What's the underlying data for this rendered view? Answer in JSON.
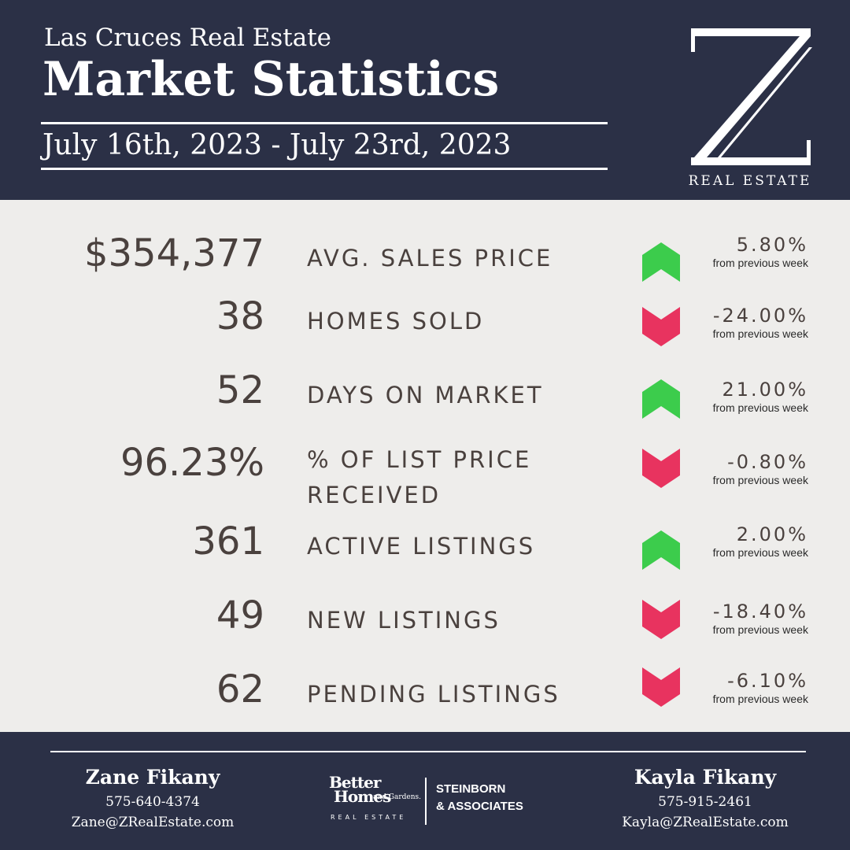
{
  "header": {
    "subtitle": "Las Cruces Real Estate",
    "title": "Market Statistics",
    "date_range": "July 16th, 2023 - July 23rd, 2023",
    "logo_letter": "Z",
    "logo_caption": "REAL ESTATE"
  },
  "colors": {
    "navy": "#2b3046",
    "panel": "#eeedeb",
    "text": "#4a413e",
    "up": "#3ccc4c",
    "down": "#e8335f"
  },
  "stats": [
    {
      "value": "$354,377",
      "label": "AVG. SALES PRICE",
      "label2": "",
      "direction": "up",
      "change": "5.80%",
      "note": "from previous week"
    },
    {
      "value": "38",
      "label": "HOMES SOLD",
      "label2": "",
      "direction": "down",
      "change": "-24.00%",
      "note": "from previous week"
    },
    {
      "value": "52",
      "label": "DAYS ON MARKET",
      "label2": "",
      "direction": "up",
      "change": "21.00%",
      "note": "from previous week"
    },
    {
      "value": "96.23%",
      "label": "% OF LIST PRICE",
      "label2": "RECEIVED",
      "direction": "down",
      "change": "-0.80%",
      "note": "from previous week"
    },
    {
      "value": "361",
      "label": "ACTIVE LISTINGS",
      "label2": "",
      "direction": "up",
      "change": "2.00%",
      "note": "from previous week"
    },
    {
      "value": "49",
      "label": "NEW LISTINGS",
      "label2": "",
      "direction": "down",
      "change": "-18.40%",
      "note": "from previous week"
    },
    {
      "value": "62",
      "label": "PENDING LISTINGS",
      "label2": "",
      "direction": "down",
      "change": "-6.10%",
      "note": "from previous week"
    }
  ],
  "footer": {
    "left_agent": {
      "name": "Zane Fikany",
      "phone": "575-640-4374",
      "email": "Zane@ZRealEstate.com"
    },
    "right_agent": {
      "name": "Kayla Fikany",
      "phone": "575-915-2461",
      "email": "Kayla@ZRealEstate.com"
    },
    "brand": {
      "better": "Better",
      "homes": "Homes",
      "gardens": "and Gardens.",
      "real_estate": "REAL ESTATE",
      "steinborn": "STEINBORN",
      "associates": "& ASSOCIATES"
    }
  }
}
